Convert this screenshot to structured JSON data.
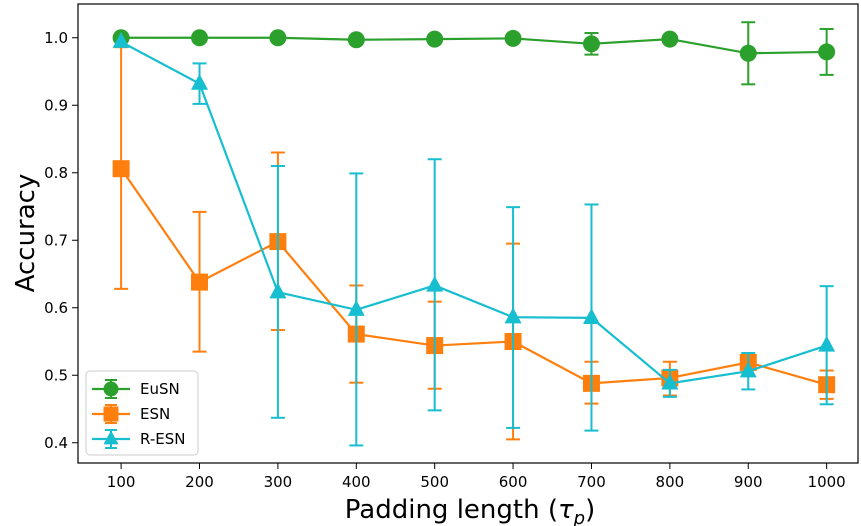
{
  "chart_data": {
    "type": "line",
    "xlabel": "Padding length (",
    "xlabel_symbol": "τ",
    "xlabel_subscript": "p",
    "xlabel_close": ")",
    "ylabel": "Accuracy",
    "x": [
      100,
      200,
      300,
      400,
      500,
      600,
      700,
      800,
      900,
      1000
    ],
    "x_ticks": [
      "100",
      "200",
      "300",
      "400",
      "500",
      "600",
      "700",
      "800",
      "900",
      "1000"
    ],
    "y_ticks": [
      "0.4",
      "0.5",
      "0.6",
      "0.7",
      "0.8",
      "0.9",
      "1.0"
    ],
    "xlim": [
      45,
      1040
    ],
    "ylim": [
      0.37,
      1.05
    ],
    "grid": false,
    "legend_position": "lower-left",
    "series": [
      {
        "name": "EuSN",
        "color": "#2ca02c",
        "marker": "circle",
        "values": [
          1.0,
          1.0,
          1.0,
          0.997,
          0.998,
          0.999,
          0.991,
          0.998,
          0.977,
          0.979
        ],
        "err_low": [
          1.0,
          1.0,
          1.0,
          0.997,
          0.998,
          0.999,
          0.975,
          0.998,
          0.931,
          0.945
        ],
        "err_high": [
          1.0,
          1.0,
          1.0,
          0.997,
          0.998,
          0.999,
          1.007,
          0.998,
          1.023,
          1.013
        ]
      },
      {
        "name": "ESN",
        "color": "#ff7f0e",
        "marker": "square",
        "values": [
          0.806,
          0.638,
          0.698,
          0.561,
          0.544,
          0.55,
          0.488,
          0.496,
          0.519,
          0.486
        ],
        "err_low": [
          0.628,
          0.535,
          0.567,
          0.489,
          0.48,
          0.405,
          0.458,
          0.47,
          0.519,
          0.465
        ],
        "err_high": [
          0.986,
          0.742,
          0.83,
          0.633,
          0.609,
          0.695,
          0.52,
          0.52,
          0.519,
          0.507
        ]
      },
      {
        "name": "R-ESN",
        "color": "#17becf",
        "marker": "triangle",
        "values": [
          0.994,
          0.932,
          0.623,
          0.597,
          0.633,
          0.586,
          0.585,
          0.488,
          0.506,
          0.544
        ],
        "err_low": [
          0.994,
          0.902,
          0.437,
          0.396,
          0.448,
          0.422,
          0.418,
          0.468,
          0.479,
          0.457
        ],
        "err_high": [
          0.994,
          0.962,
          0.81,
          0.799,
          0.82,
          0.749,
          0.753,
          0.508,
          0.533,
          0.632
        ]
      }
    ]
  }
}
